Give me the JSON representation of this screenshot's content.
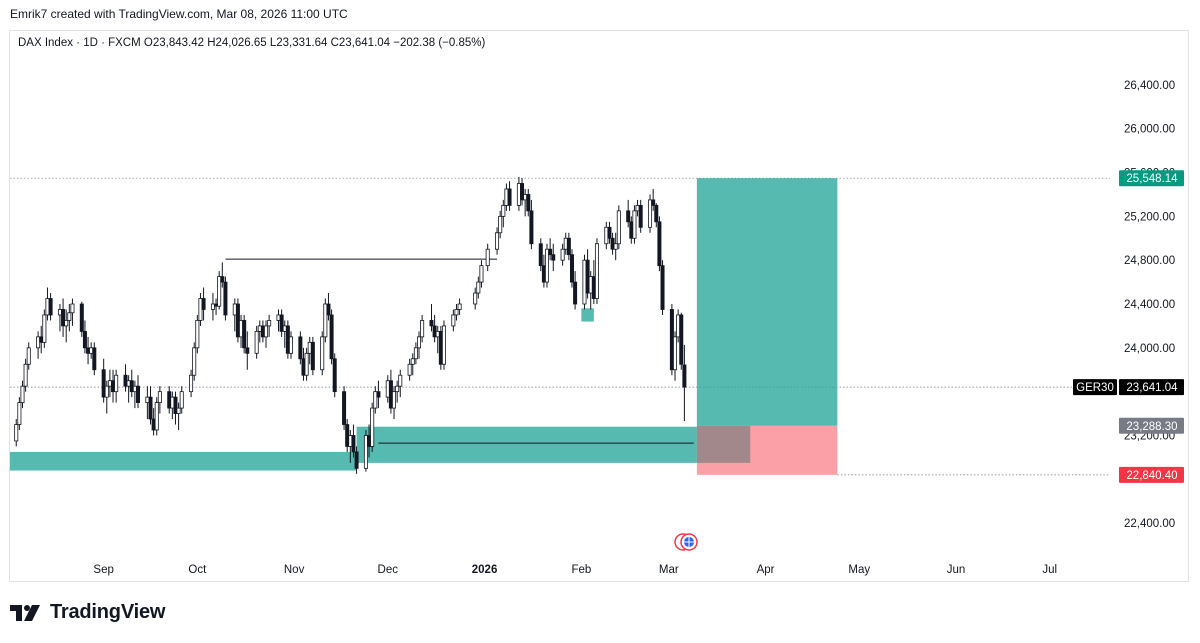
{
  "header": {
    "credit": "Emrik7 created with TradingView.com, Mar 08, 2026 11:00 UTC"
  },
  "legend": {
    "text": "DAX Index · 1D · FXCM  O23,843.42  H24,026.65  L23,331.64  C23,641.04  −202.38 (−0.85%)"
  },
  "footer": {
    "logo_text": "TradingView"
  },
  "colors": {
    "bull": "#131722",
    "bear": "#131722",
    "target_zone": "#26a69a",
    "stop_zone": "#f7525f",
    "entry_label": "#787b86",
    "target_label": "#089981",
    "stop_label": "#f23645"
  },
  "chart_data": {
    "type": "candlestick",
    "instrument": "DAX Index",
    "timeframe": "1D",
    "source": "FXCM",
    "ohlc_last": {
      "open": 23843.42,
      "high": 24026.65,
      "low": 23331.64,
      "close": 23641.04,
      "change": -202.38,
      "change_pct": -0.85
    },
    "y_axis": {
      "ticks": [
        22400,
        23200,
        24000,
        24400,
        24800,
        25200,
        25600,
        26000,
        26400
      ],
      "tick_labels": [
        "22,400.00",
        "23,200.00",
        "24,000.00",
        "24,400.00",
        "24,800.00",
        "25,200.00",
        "25,600.00",
        "26,000.00",
        "26,400.00"
      ],
      "range": [
        22100,
        26700
      ]
    },
    "x_axis": {
      "labels": [
        "Sep",
        "Oct",
        "Nov",
        "Dec",
        "2026",
        "Feb",
        "Mar",
        "Apr",
        "May",
        "Jun",
        "Jul"
      ],
      "label_dates": [
        "2025-09-01",
        "2025-10-01",
        "2025-11-01",
        "2025-12-01",
        "2026-01-01",
        "2026-02-01",
        "2026-03-01",
        "2026-04-01",
        "2026-05-01",
        "2026-06-01",
        "2026-07-01"
      ],
      "range": [
        "2025-08-02",
        "2026-07-20"
      ]
    },
    "price_labels": [
      {
        "role": "target",
        "text": "25,548.14",
        "value": 25548.14
      },
      {
        "role": "current",
        "symbol": "GER30",
        "text": "23,641.04",
        "value": 23641.04
      },
      {
        "role": "entry",
        "text": "23,288.30",
        "value": 23288.3
      },
      {
        "role": "stop",
        "text": "22,840.40",
        "value": 22840.4
      }
    ],
    "position": {
      "type": "long",
      "start": "2026-03-10",
      "end": "2026-04-24",
      "entry": 23288.3,
      "target": 25548.14,
      "stop": 22840.4
    },
    "zones": [
      {
        "name": "demand-zone-1",
        "start": "2025-08-02",
        "end": "2025-11-21",
        "top": 23050,
        "bottom": 22880
      },
      {
        "name": "demand-zone-2",
        "start": "2025-11-21",
        "end": "2026-03-10",
        "top": 23280,
        "bottom": 22950
      },
      {
        "name": "small-zone",
        "start": "2026-02-01",
        "end": "2026-02-05",
        "top": 24360,
        "bottom": 24240
      }
    ],
    "lines": [
      {
        "name": "resistance-line",
        "start": "2025-10-10",
        "end": "2026-01-05",
        "value": 24810
      },
      {
        "name": "support-line",
        "start": "2025-11-28",
        "end": "2026-03-09",
        "value": 23130
      }
    ],
    "candles": [
      [
        "2025-08-04",
        23150,
        23350,
        23100,
        23300
      ],
      [
        "2025-08-05",
        23300,
        23550,
        23250,
        23500
      ],
      [
        "2025-08-06",
        23500,
        23700,
        23450,
        23650
      ],
      [
        "2025-08-07",
        23650,
        23900,
        23600,
        23850
      ],
      [
        "2025-08-08",
        23850,
        24050,
        23800,
        24000
      ],
      [
        "2025-08-11",
        24000,
        24150,
        23900,
        24100
      ],
      [
        "2025-08-12",
        24100,
        24200,
        23950,
        24050
      ],
      [
        "2025-08-13",
        24050,
        24350,
        24000,
        24300
      ],
      [
        "2025-08-14",
        24300,
        24550,
        24250,
        24450
      ],
      [
        "2025-08-15",
        24450,
        24500,
        24250,
        24300
      ],
      [
        "2025-08-18",
        24300,
        24400,
        24150,
        24350
      ],
      [
        "2025-08-19",
        24350,
        24450,
        24100,
        24200
      ],
      [
        "2025-08-20",
        24200,
        24350,
        24050,
        24250
      ],
      [
        "2025-08-21",
        24250,
        24400,
        24150,
        24320
      ],
      [
        "2025-08-22",
        24320,
        24450,
        24200,
        24400
      ],
      [
        "2025-08-25",
        24400,
        24420,
        24100,
        24150
      ],
      [
        "2025-08-26",
        24150,
        24250,
        23950,
        24000
      ],
      [
        "2025-08-27",
        24000,
        24100,
        23850,
        23950
      ],
      [
        "2025-08-28",
        23950,
        24050,
        23900,
        24000
      ],
      [
        "2025-08-29",
        24000,
        24050,
        23750,
        23800
      ],
      [
        "2025-09-01",
        23800,
        23900,
        23500,
        23550
      ],
      [
        "2025-09-02",
        23550,
        23700,
        23400,
        23650
      ],
      [
        "2025-09-03",
        23650,
        23800,
        23550,
        23700
      ],
      [
        "2025-09-04",
        23700,
        23800,
        23500,
        23600
      ],
      [
        "2025-09-05",
        23600,
        23800,
        23500,
        23750
      ],
      [
        "2025-09-08",
        23750,
        23850,
        23600,
        23650
      ],
      [
        "2025-09-09",
        23650,
        23750,
        23500,
        23700
      ],
      [
        "2025-09-10",
        23700,
        23800,
        23550,
        23600
      ],
      [
        "2025-09-11",
        23600,
        23700,
        23450,
        23650
      ],
      [
        "2025-09-12",
        23650,
        23750,
        23450,
        23500
      ],
      [
        "2025-09-15",
        23500,
        23650,
        23350,
        23550
      ],
      [
        "2025-09-16",
        23550,
        23650,
        23300,
        23350
      ],
      [
        "2025-09-17",
        23350,
        23450,
        23200,
        23250
      ],
      [
        "2025-09-18",
        23250,
        23550,
        23200,
        23500
      ],
      [
        "2025-09-19",
        23500,
        23650,
        23400,
        23600
      ],
      [
        "2025-09-22",
        23600,
        23650,
        23400,
        23450
      ],
      [
        "2025-09-23",
        23450,
        23600,
        23350,
        23550
      ],
      [
        "2025-09-24",
        23550,
        23600,
        23300,
        23400
      ],
      [
        "2025-09-25",
        23400,
        23500,
        23250,
        23450
      ],
      [
        "2025-09-26",
        23450,
        23650,
        23400,
        23600
      ],
      [
        "2025-09-29",
        23600,
        23800,
        23550,
        23750
      ],
      [
        "2025-09-30",
        23750,
        24050,
        23700,
        24000
      ],
      [
        "2025-10-01",
        24000,
        24300,
        23950,
        24250
      ],
      [
        "2025-10-02",
        24250,
        24500,
        24200,
        24450
      ],
      [
        "2025-10-03",
        24450,
        24550,
        24250,
        24350
      ],
      [
        "2025-10-06",
        24350,
        24500,
        24250,
        24400
      ],
      [
        "2025-10-07",
        24400,
        24450,
        24300,
        24380
      ],
      [
        "2025-10-08",
        24380,
        24700,
        24350,
        24650
      ],
      [
        "2025-10-09",
        24650,
        24780,
        24550,
        24600
      ],
      [
        "2025-10-10",
        24600,
        24650,
        24250,
        24300
      ],
      [
        "2025-10-13",
        24300,
        24450,
        24150,
        24400
      ],
      [
        "2025-10-14",
        24400,
        24450,
        24050,
        24100
      ],
      [
        "2025-10-15",
        24100,
        24300,
        24000,
        24250
      ],
      [
        "2025-10-16",
        24250,
        24300,
        23950,
        24000
      ],
      [
        "2025-10-17",
        24000,
        24150,
        23800,
        23950
      ],
      [
        "2025-10-20",
        23950,
        24200,
        23900,
        24150
      ],
      [
        "2025-10-21",
        24150,
        24250,
        24050,
        24200
      ],
      [
        "2025-10-22",
        24200,
        24250,
        24050,
        24100
      ],
      [
        "2025-10-23",
        24100,
        24250,
        24000,
        24200
      ],
      [
        "2025-10-24",
        24200,
        24300,
        24100,
        24250
      ],
      [
        "2025-10-27",
        24250,
        24350,
        24150,
        24300
      ],
      [
        "2025-10-28",
        24300,
        24350,
        24100,
        24150
      ],
      [
        "2025-10-29",
        24150,
        24250,
        24000,
        24200
      ],
      [
        "2025-10-30",
        24200,
        24250,
        23900,
        23950
      ],
      [
        "2025-10-31",
        23950,
        24150,
        23900,
        24100
      ],
      [
        "2025-11-03",
        24100,
        24150,
        23850,
        23900
      ],
      [
        "2025-11-04",
        23900,
        24000,
        23700,
        23750
      ],
      [
        "2025-11-05",
        23750,
        24000,
        23700,
        23950
      ],
      [
        "2025-11-06",
        23950,
        24100,
        23850,
        24050
      ],
      [
        "2025-11-07",
        24050,
        24100,
        23750,
        23800
      ],
      [
        "2025-11-10",
        23800,
        24150,
        23750,
        24100
      ],
      [
        "2025-11-11",
        24100,
        24450,
        24050,
        24400
      ],
      [
        "2025-11-12",
        24400,
        24500,
        24250,
        24300
      ],
      [
        "2025-11-13",
        24300,
        24350,
        23850,
        23900
      ],
      [
        "2025-11-14",
        23900,
        23950,
        23550,
        23600
      ],
      [
        "2025-11-17",
        23600,
        23650,
        23250,
        23300
      ],
      [
        "2025-11-18",
        23300,
        23350,
        23050,
        23100
      ],
      [
        "2025-11-19",
        23100,
        23250,
        22950,
        23200
      ],
      [
        "2025-11-20",
        23200,
        23300,
        23000,
        23050
      ],
      [
        "2025-11-21",
        23050,
        23100,
        22850,
        22900
      ],
      [
        "2025-11-24",
        22900,
        23250,
        22870,
        23200
      ],
      [
        "2025-11-25",
        23200,
        23300,
        23000,
        23100
      ],
      [
        "2025-11-26",
        23100,
        23500,
        23050,
        23450
      ],
      [
        "2025-11-27",
        23450,
        23650,
        23400,
        23600
      ],
      [
        "2025-11-28",
        23600,
        23700,
        23450,
        23550
      ],
      [
        "2025-12-01",
        23550,
        23750,
        23500,
        23700
      ],
      [
        "2025-12-02",
        23700,
        23800,
        23400,
        23450
      ],
      [
        "2025-12-03",
        23450,
        23650,
        23350,
        23600
      ],
      [
        "2025-12-04",
        23600,
        23700,
        23500,
        23650
      ],
      [
        "2025-12-05",
        23650,
        23800,
        23550,
        23750
      ],
      [
        "2025-12-08",
        23750,
        23900,
        23700,
        23850
      ],
      [
        "2025-12-09",
        23850,
        23950,
        23750,
        23900
      ],
      [
        "2025-12-10",
        23900,
        24050,
        23850,
        24000
      ],
      [
        "2025-12-11",
        24000,
        24150,
        23900,
        24100
      ],
      [
        "2025-12-12",
        24100,
        24300,
        24050,
        24250
      ],
      [
        "2025-12-15",
        24250,
        24400,
        24150,
        24200
      ],
      [
        "2025-12-16",
        24200,
        24300,
        24050,
        24100
      ],
      [
        "2025-12-17",
        24100,
        24200,
        23950,
        24150
      ],
      [
        "2025-12-18",
        24150,
        24200,
        23800,
        23850
      ],
      [
        "2025-12-19",
        23850,
        24250,
        23800,
        24200
      ],
      [
        "2025-12-22",
        24200,
        24350,
        24150,
        24300
      ],
      [
        "2025-12-23",
        24300,
        24400,
        24250,
        24350
      ],
      [
        "2025-12-24",
        24350,
        24450,
        24300,
        24400
      ],
      [
        "2025-12-29",
        24400,
        24550,
        24350,
        24500
      ],
      [
        "2025-12-30",
        24500,
        24650,
        24450,
        24600
      ],
      [
        "2025-12-31",
        24600,
        24800,
        24550,
        24750
      ],
      [
        "2026-01-02",
        24750,
        24950,
        24700,
        24900
      ],
      [
        "2026-01-05",
        24900,
        25100,
        24850,
        25050
      ],
      [
        "2026-01-06",
        25050,
        25250,
        25000,
        25200
      ],
      [
        "2026-01-07",
        25200,
        25350,
        25100,
        25300
      ],
      [
        "2026-01-08",
        25300,
        25500,
        25250,
        25450
      ],
      [
        "2026-01-09",
        25450,
        25520,
        25250,
        25300
      ],
      [
        "2026-01-12",
        25300,
        25560,
        25250,
        25500
      ],
      [
        "2026-01-13",
        25500,
        25550,
        25300,
        25350
      ],
      [
        "2026-01-14",
        25350,
        25450,
        25200,
        25400
      ],
      [
        "2026-01-15",
        25400,
        25450,
        25200,
        25250
      ],
      [
        "2026-01-16",
        25250,
        25350,
        24900,
        24950
      ],
      [
        "2026-01-19",
        24950,
        25000,
        24700,
        24750
      ],
      [
        "2026-01-20",
        24750,
        24850,
        24550,
        24600
      ],
      [
        "2026-01-21",
        24600,
        24950,
        24550,
        24900
      ],
      [
        "2026-01-22",
        24900,
        25000,
        24800,
        24850
      ],
      [
        "2026-01-23",
        24850,
        24950,
        24700,
        24800
      ],
      [
        "2026-01-26",
        24800,
        24950,
        24750,
        24900
      ],
      [
        "2026-01-27",
        24900,
        25050,
        24850,
        25000
      ],
      [
        "2026-01-28",
        25000,
        25050,
        24800,
        24850
      ],
      [
        "2026-01-29",
        24850,
        24900,
        24550,
        24600
      ],
      [
        "2026-01-30",
        24600,
        24700,
        24350,
        24400
      ],
      [
        "2026-02-02",
        24400,
        24850,
        24350,
        24800
      ],
      [
        "2026-02-03",
        24800,
        24900,
        24450,
        24500
      ],
      [
        "2026-02-04",
        24500,
        24700,
        24350,
        24650
      ],
      [
        "2026-02-05",
        24650,
        24800,
        24400,
        24450
      ],
      [
        "2026-02-06",
        24450,
        25000,
        24400,
        24950
      ],
      [
        "2026-02-09",
        24950,
        25150,
        24900,
        25100
      ],
      [
        "2026-02-10",
        25100,
        25150,
        24950,
        25000
      ],
      [
        "2026-02-11",
        25000,
        25050,
        24850,
        24900
      ],
      [
        "2026-02-12",
        24900,
        25050,
        24800,
        24950
      ],
      [
        "2026-02-13",
        24950,
        25300,
        24900,
        25250
      ],
      [
        "2026-02-16",
        25250,
        25350,
        25100,
        25150
      ],
      [
        "2026-02-17",
        25150,
        25200,
        24950,
        25000
      ],
      [
        "2026-02-18",
        25000,
        25300,
        24950,
        25250
      ],
      [
        "2026-02-19",
        25250,
        25350,
        25200,
        25300
      ],
      [
        "2026-02-20",
        25300,
        25350,
        25050,
        25100
      ],
      [
        "2026-02-23",
        25100,
        25400,
        25050,
        25350
      ],
      [
        "2026-02-24",
        25350,
        25450,
        25250,
        25300
      ],
      [
        "2026-02-25",
        25300,
        25320,
        25100,
        25150
      ],
      [
        "2026-02-26",
        25150,
        25200,
        24700,
        24750
      ],
      [
        "2026-02-27",
        24750,
        24800,
        24300,
        24350
      ],
      [
        "2026-03-02",
        24350,
        24400,
        23750,
        23800
      ],
      [
        "2026-03-03",
        23800,
        24150,
        23700,
        24100
      ],
      [
        "2026-03-04",
        24100,
        24350,
        24050,
        24300
      ],
      [
        "2026-03-05",
        24300,
        24320,
        23800,
        23850
      ],
      [
        "2026-03-06",
        23843.42,
        24026.65,
        23331.64,
        23641.04
      ]
    ]
  }
}
